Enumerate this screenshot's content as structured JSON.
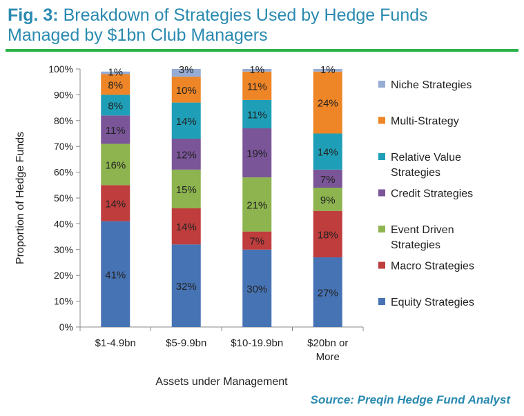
{
  "header": {
    "fig_label": "Fig. 3:",
    "title_line1": "Breakdown of Strategies Used by Hedge Funds",
    "title_line2": "Managed by $1bn Club Managers"
  },
  "source": "Source: Preqin Hedge Fund Analyst",
  "colors": {
    "title": "#2a8ab0",
    "rule": "#2bb34a"
  },
  "chart_data": {
    "type": "bar",
    "stacked": true,
    "xlabel": "Assets under Management",
    "ylabel": "Proportion of Hedge Funds",
    "ylim": [
      0,
      100
    ],
    "yticks": [
      "0%",
      "10%",
      "20%",
      "30%",
      "40%",
      "50%",
      "60%",
      "70%",
      "80%",
      "90%",
      "100%"
    ],
    "categories": [
      [
        "$1-4.9bn"
      ],
      [
        "$5-9.9bn"
      ],
      [
        "$10-19.9bn"
      ],
      [
        "$20bn or",
        "More"
      ]
    ],
    "series": [
      {
        "name": "Equity Strategies",
        "color": "#4673b4",
        "values": [
          41,
          32,
          30,
          27
        ]
      },
      {
        "name": "Macro Strategies",
        "color": "#bf3d3d",
        "values": [
          14,
          14,
          7,
          18
        ]
      },
      {
        "name": "Event Driven Strategies",
        "color": "#8db44f",
        "values": [
          16,
          15,
          21,
          9
        ]
      },
      {
        "name": "Credit Strategies",
        "color": "#7a5598",
        "values": [
          11,
          12,
          19,
          7
        ]
      },
      {
        "name": "Relative Value Strategies",
        "color": "#1f9fb7",
        "values": [
          8,
          14,
          11,
          14
        ]
      },
      {
        "name": "Multi-Strategy",
        "color": "#ee8526",
        "values": [
          8,
          10,
          11,
          24
        ]
      },
      {
        "name": "Niche Strategies",
        "color": "#97acd4",
        "values": [
          1,
          3,
          1,
          1
        ]
      }
    ],
    "legend": [
      {
        "series": 6,
        "lines": [
          "Niche Strategies"
        ]
      },
      {
        "series": 5,
        "lines": [
          "Multi-Strategy"
        ]
      },
      {
        "series": 4,
        "lines": [
          "Relative Value",
          "Strategies"
        ]
      },
      {
        "series": 3,
        "lines": [
          "Credit Strategies"
        ]
      },
      {
        "series": 2,
        "lines": [
          "Event Driven",
          "Strategies"
        ]
      },
      {
        "series": 1,
        "lines": [
          "Macro Strategies"
        ]
      },
      {
        "series": 0,
        "lines": [
          "Equity Strategies"
        ]
      }
    ],
    "legend_position": "right"
  }
}
